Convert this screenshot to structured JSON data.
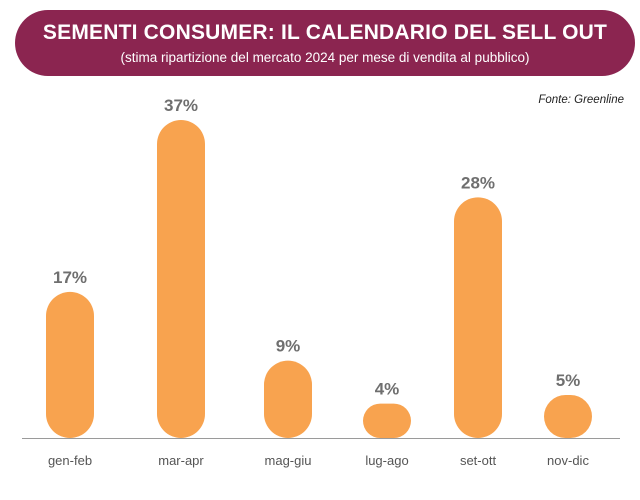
{
  "header": {
    "title": "SEMENTI CONSUMER: IL CALENDARIO DEL SELL OUT",
    "subtitle": "(stima ripartizione del mercato 2024 per mese di vendita al pubblico)"
  },
  "source": "Fonte: Greenline",
  "colors": {
    "banner": "#8b2550",
    "bar": "#f8a34f",
    "baseline": "#9a9a9a",
    "value_label": "#6f6f6f"
  },
  "chart_data": {
    "type": "bar",
    "categories": [
      "gen-feb",
      "mar-apr",
      "mag-giu",
      "lug-ago",
      "set-ott",
      "nov-dic"
    ],
    "values": [
      17,
      37,
      9,
      4,
      28,
      5
    ],
    "value_labels": [
      "17%",
      "37%",
      "9%",
      "4%",
      "28%",
      "5%"
    ],
    "title": "SEMENTI CONSUMER: IL CALENDARIO DEL SELL OUT",
    "subtitle": "(stima ripartizione del mercato 2024 per mese di vendita al pubblico)",
    "unit": "%",
    "ylim": [
      0,
      37
    ],
    "grid": false,
    "legend": "none"
  }
}
